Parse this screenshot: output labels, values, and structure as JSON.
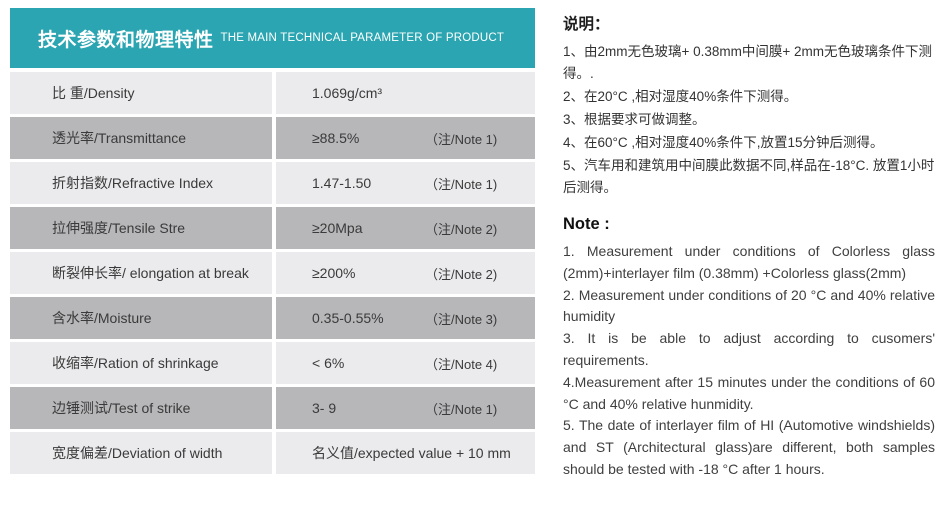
{
  "colors": {
    "accent": "#2aa5b1",
    "row_light": "#ebebed",
    "row_dark": "#b7b7ba"
  },
  "table": {
    "header": {
      "title_zh": "技术参数和物理特性",
      "title_en": "THE MAIN TECHNICAL PARAMETER OF PRODUCT"
    },
    "rows": [
      {
        "label": "比 重/Density",
        "value": "1.069g/cm³",
        "note": ""
      },
      {
        "label": "透光率/Transmittance",
        "value": "≥88.5%",
        "note": "（注/Note 1)"
      },
      {
        "label": "折射指数/Refractive Index",
        "value": "1.47-1.50",
        "note": "（注/Note 1)"
      },
      {
        "label": "拉伸强度/Tensile Stre",
        "value": "≥20Mpa",
        "note": "（注/Note 2)"
      },
      {
        "label": "断裂伸长率/ elongation at break",
        "value": "≥200%",
        "note": "（注/Note 2)"
      },
      {
        "label": "含水率/Moisture",
        "value": "0.35-0.55%",
        "note": "（注/Note 3)"
      },
      {
        "label": "收缩率/Ration of shrinkage",
        "value": "< 6%",
        "note": "（注/Note 4)"
      },
      {
        "label": "边锤测试/Test of strike",
        "value": "3- 9",
        "note": "（注/Note 1)"
      },
      {
        "label": "宽度偏差/Deviation of width",
        "value": "名义值/expected value + 10 mm",
        "note": ""
      }
    ]
  },
  "notes_zh": {
    "heading": "说明：",
    "items": [
      "1、由2mm无色玻璃+ 0.38mm中间膜+ 2mm无色玻璃条件下测得。.",
      "2、在20°C ,相对湿度40%条件下测得。",
      "3、根据要求可做调整。",
      "4、在60°C ,相对湿度40%条件下,放置15分钟后测得。",
      "5、汽车用和建筑用中间膜此数据不同,样品在-18°C. 放置1小时后测得。"
    ]
  },
  "notes_en": {
    "heading": "Note :",
    "items": [
      "1. Measurement under conditions of Colorless glass (2mm)+interlayer film (0.38mm) +Colorless glass(2mm)",
      "2. Measurement under conditions of 20 °C and 40% relative humidity",
      "3. It is be able to adjust according to cusomers' requirements.",
      "4.Measurement after 15 minutes under the conditions of 60 °C and 40% relative hunmidity.",
      "5. The date of interlayer film of HI (Automotive windshields) and ST (Architectural glass)are different, both samples should be tested with -18 °C after 1 hours."
    ]
  }
}
